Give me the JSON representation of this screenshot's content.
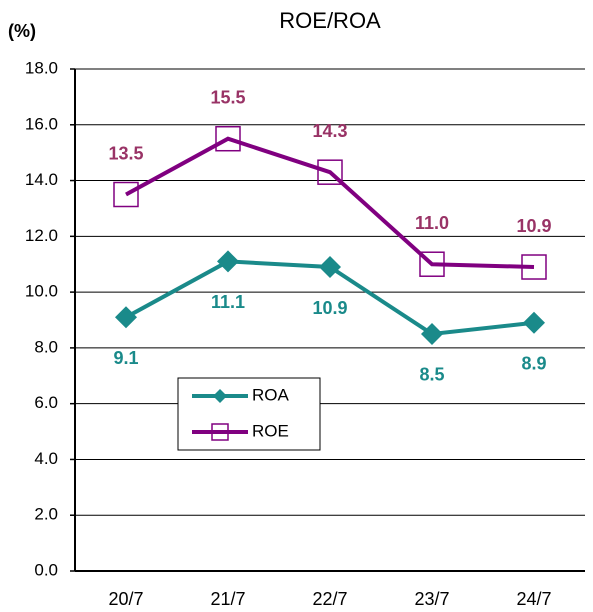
{
  "chart_data": {
    "type": "line",
    "title": "ROE/ROA",
    "unit_label": "(%)",
    "categories": [
      "20/7",
      "21/7",
      "22/7",
      "23/7",
      "24/7"
    ],
    "series": [
      {
        "name": "ROA",
        "color": "#1a8a8a",
        "label_color": "#1a8a8a",
        "marker": "diamond",
        "values": [
          9.1,
          11.1,
          10.9,
          8.5,
          8.9
        ],
        "value_labels": [
          "9.1",
          "11.1",
          "10.9",
          "8.5",
          "8.9"
        ]
      },
      {
        "name": "ROE",
        "color": "#800080",
        "label_color": "#993366",
        "marker": "square",
        "values": [
          13.5,
          15.5,
          14.3,
          11.0,
          10.9
        ],
        "value_labels": [
          "13.5",
          "15.5",
          "14.3",
          "11.0",
          "10.9"
        ]
      }
    ],
    "ylim": [
      0,
      18
    ],
    "yticks": [
      {
        "value": 0,
        "label": "0.0"
      },
      {
        "value": 2,
        "label": "2.0"
      },
      {
        "value": 4,
        "label": "4.0"
      },
      {
        "value": 6,
        "label": "6.0"
      },
      {
        "value": 8,
        "label": "8.0"
      },
      {
        "value": 10,
        "label": "10.0"
      },
      {
        "value": 12,
        "label": "12.0"
      },
      {
        "value": 14,
        "label": "14.0"
      },
      {
        "value": 16,
        "label": "16.0"
      },
      {
        "value": 18,
        "label": "18.0"
      }
    ],
    "grid": true
  }
}
